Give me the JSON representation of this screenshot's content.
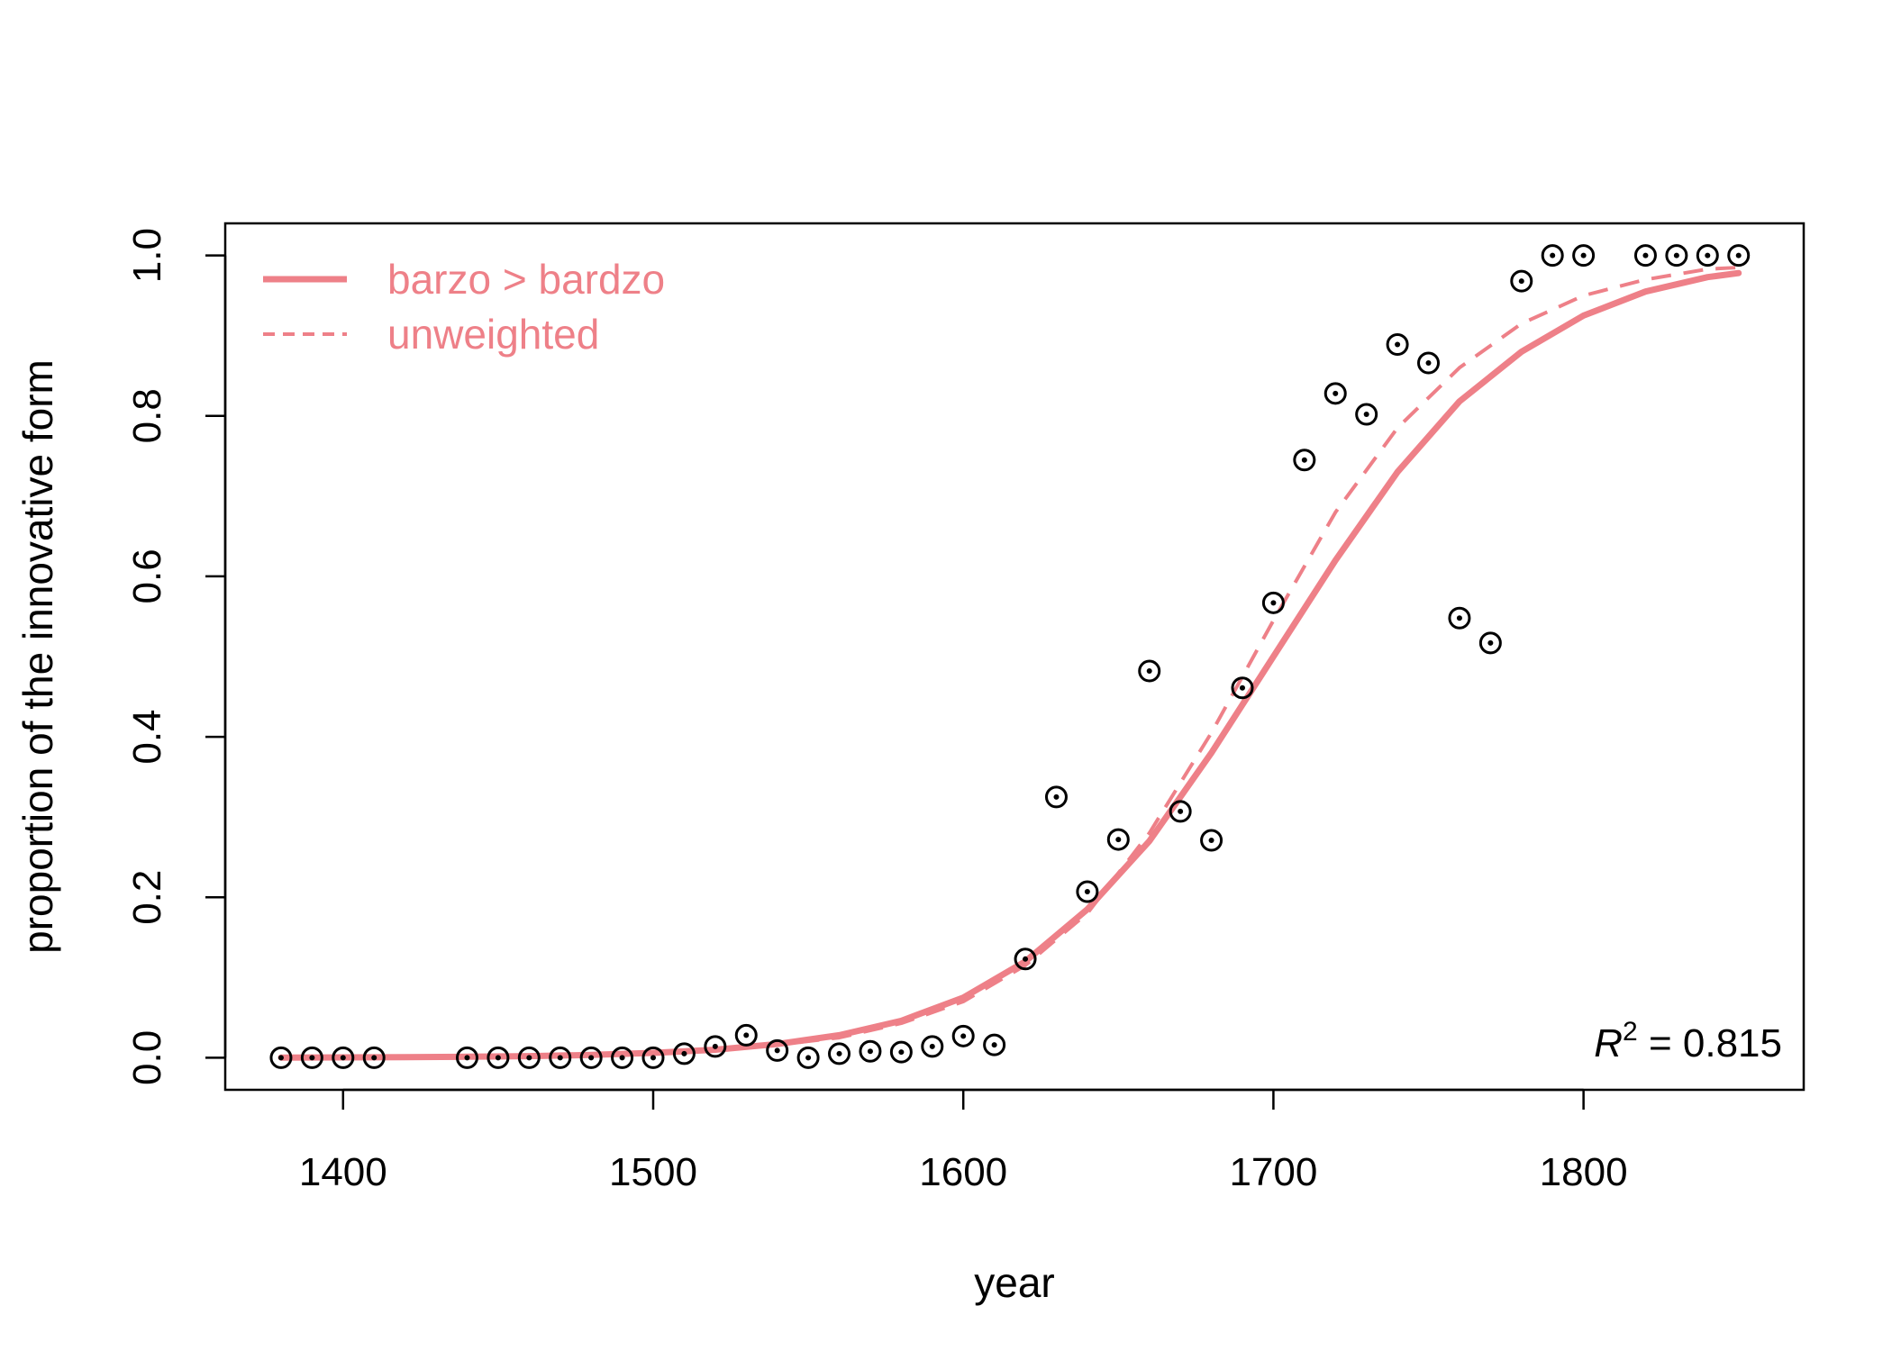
{
  "chart_data": {
    "type": "scatter",
    "xlabel": "year",
    "ylabel": "proportion of the innovative form",
    "xlim": [
      1362,
      1871
    ],
    "ylim": [
      -0.04,
      1.04
    ],
    "x_ticks": [
      1400,
      1500,
      1600,
      1700,
      1800
    ],
    "x_tick_labels": [
      "1400",
      "1500",
      "1600",
      "1700",
      "1800"
    ],
    "y_ticks": [
      0,
      0.2,
      0.4,
      0.6,
      0.8,
      1.0
    ],
    "y_tick_labels": [
      "0.0",
      "0.2",
      "0.4",
      "0.6",
      "0.8",
      "1.0"
    ],
    "grid": false,
    "legend_position": "top-left",
    "line_color": "#ee8088",
    "point_color": "#000000",
    "points": {
      "x": [
        1380,
        1390,
        1400,
        1410,
        1440,
        1450,
        1460,
        1470,
        1480,
        1490,
        1500,
        1510,
        1520,
        1530,
        1540,
        1550,
        1560,
        1570,
        1580,
        1590,
        1600,
        1610,
        1620,
        1630,
        1640,
        1650,
        1660,
        1670,
        1680,
        1690,
        1700,
        1710,
        1720,
        1730,
        1740,
        1750,
        1760,
        1770,
        1780,
        1790,
        1800,
        1820,
        1830,
        1840,
        1850
      ],
      "y": [
        0,
        0,
        0,
        0,
        0,
        0,
        0,
        0,
        0,
        0,
        0,
        0.005,
        0.014,
        0.028,
        0.009,
        0,
        0.005,
        0.008,
        0.007,
        0.014,
        0.027,
        0.016,
        0.123,
        0.325,
        0.207,
        0.272,
        0.482,
        0.307,
        0.271,
        0.461,
        0.567,
        0.745,
        0.828,
        0.802,
        0.889,
        0.866,
        0.548,
        0.517,
        0.968,
        1.0,
        1.0,
        1.0,
        1.0,
        1.0,
        1.0
      ]
    },
    "series": [
      {
        "name": "barzo > bardzo",
        "style": "solid",
        "x": [
          1380,
          1400,
          1420,
          1440,
          1460,
          1480,
          1500,
          1520,
          1540,
          1560,
          1580,
          1600,
          1620,
          1640,
          1660,
          1680,
          1700,
          1720,
          1740,
          1760,
          1780,
          1800,
          1820,
          1840,
          1850
        ],
        "y": [
          0.0002,
          0.0004,
          0.0007,
          0.0012,
          0.002,
          0.0035,
          0.006,
          0.01,
          0.017,
          0.028,
          0.046,
          0.075,
          0.12,
          0.185,
          0.27,
          0.38,
          0.5,
          0.62,
          0.73,
          0.818,
          0.88,
          0.925,
          0.955,
          0.973,
          0.978
        ]
      },
      {
        "name": "unweighted",
        "style": "dashed",
        "x": [
          1380,
          1400,
          1420,
          1440,
          1460,
          1480,
          1500,
          1520,
          1540,
          1560,
          1580,
          1600,
          1620,
          1640,
          1660,
          1680,
          1700,
          1720,
          1740,
          1760,
          1780,
          1800,
          1820,
          1840,
          1850
        ],
        "y": [
          0.0001,
          0.0002,
          0.0004,
          0.0008,
          0.0015,
          0.0028,
          0.005,
          0.009,
          0.016,
          0.025,
          0.043,
          0.07,
          0.115,
          0.18,
          0.28,
          0.405,
          0.545,
          0.68,
          0.785,
          0.86,
          0.915,
          0.95,
          0.97,
          0.983,
          0.985
        ]
      }
    ],
    "annotation": {
      "label": "R",
      "exponent": "2",
      "value_text": " = 0.815",
      "position": "bottom-right"
    }
  }
}
